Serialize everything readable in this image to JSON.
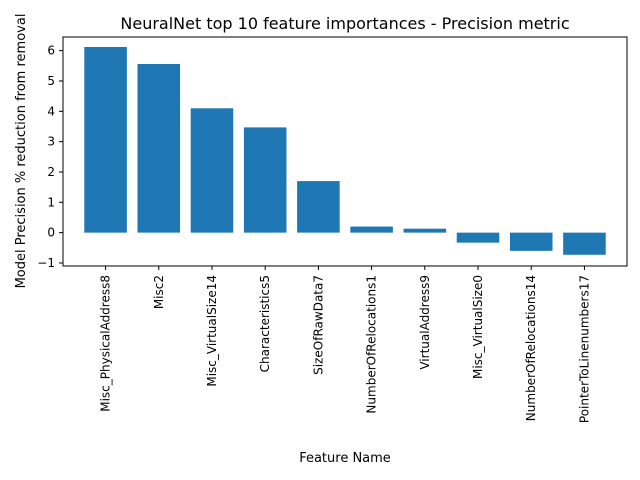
{
  "chart_data": {
    "type": "bar",
    "title": "NeuralNet top 10 feature importances - Precision metric",
    "xlabel": "Feature Name",
    "ylabel": "Model Precision % reduction from removal",
    "categories": [
      "Misc_PhysicalAddress8",
      "Misc2",
      "Misc_VirtualSize14",
      "Characteristics5",
      "SizeOfRawData7",
      "NumberOfRelocations1",
      "VirtualAddress9",
      "Misc_VirtualSize0",
      "NumberOfRelocations14",
      "PointerToLinenumbers17"
    ],
    "values": [
      6.12,
      5.56,
      4.1,
      3.47,
      1.7,
      0.2,
      0.13,
      -0.33,
      -0.6,
      -0.73
    ],
    "ylim": [
      -1.1,
      6.45
    ],
    "yticks": [
      -1,
      0,
      1,
      2,
      3,
      4,
      5,
      6
    ],
    "bar_color": "#1f77b4",
    "grid": false
  }
}
